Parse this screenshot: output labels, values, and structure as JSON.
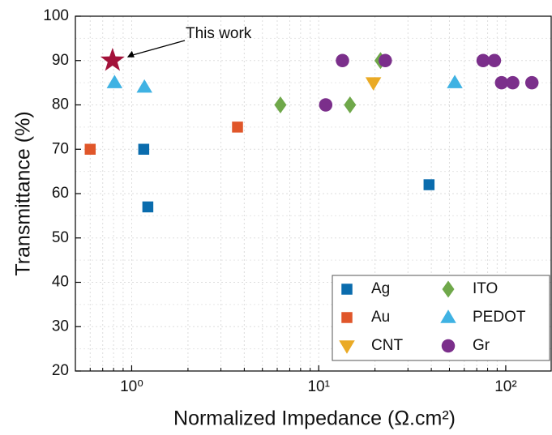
{
  "chart_data": {
    "type": "scatter",
    "x_label": "Normalized Impedance (Ω.cm²)",
    "y_label": "Transmittance (%)",
    "xscale": "log",
    "xlim": [
      0.5,
      175
    ],
    "ylim": [
      20,
      100
    ],
    "xticks": [
      {
        "value": 1,
        "label": "10⁰"
      },
      {
        "value": 10,
        "label": "10¹"
      },
      {
        "value": 100,
        "label": "10²"
      }
    ],
    "xminorticks": [
      0.6,
      0.7,
      0.8,
      0.9,
      2,
      3,
      4,
      5,
      6,
      7,
      8,
      9,
      20,
      30,
      40,
      50,
      60,
      70,
      80,
      90
    ],
    "yticks": [
      20,
      30,
      40,
      50,
      60,
      70,
      80,
      90,
      100
    ],
    "grid": true,
    "legend": "lower right",
    "series": [
      {
        "name": "Ag",
        "color": "#0a6cad",
        "marker": "square",
        "x": [
          1.16,
          1.22,
          38.9
        ],
        "values": [
          70,
          57,
          62
        ]
      },
      {
        "name": "Au",
        "color": "#e0562a",
        "marker": "square",
        "x": [
          0.6,
          3.68
        ],
        "values": [
          70,
          75
        ]
      },
      {
        "name": "CNT",
        "color": "#eaaa25",
        "marker": "triangle-down",
        "x": [
          19.6
        ],
        "values": [
          85
        ]
      },
      {
        "name": "ITO",
        "color": "#6fa84a",
        "marker": "diamond",
        "x": [
          6.24,
          14.7,
          21.4
        ],
        "values": [
          80,
          80,
          90
        ]
      },
      {
        "name": "PEDOT",
        "color": "#3fb2e3",
        "marker": "triangle-up",
        "x": [
          0.81,
          1.17,
          53.4
        ],
        "values": [
          85,
          84,
          85
        ]
      },
      {
        "name": "Gr",
        "color": "#7b2f8b",
        "marker": "circle",
        "x": [
          13.4,
          22.7,
          10.9,
          75.7,
          87,
          95,
          109,
          138
        ],
        "values": [
          90,
          90,
          80,
          90,
          90,
          85,
          85,
          85
        ]
      }
    ],
    "highlight": {
      "label": "This work",
      "x": 0.79,
      "y": 90,
      "color": "#a3123a",
      "marker": "star"
    }
  }
}
